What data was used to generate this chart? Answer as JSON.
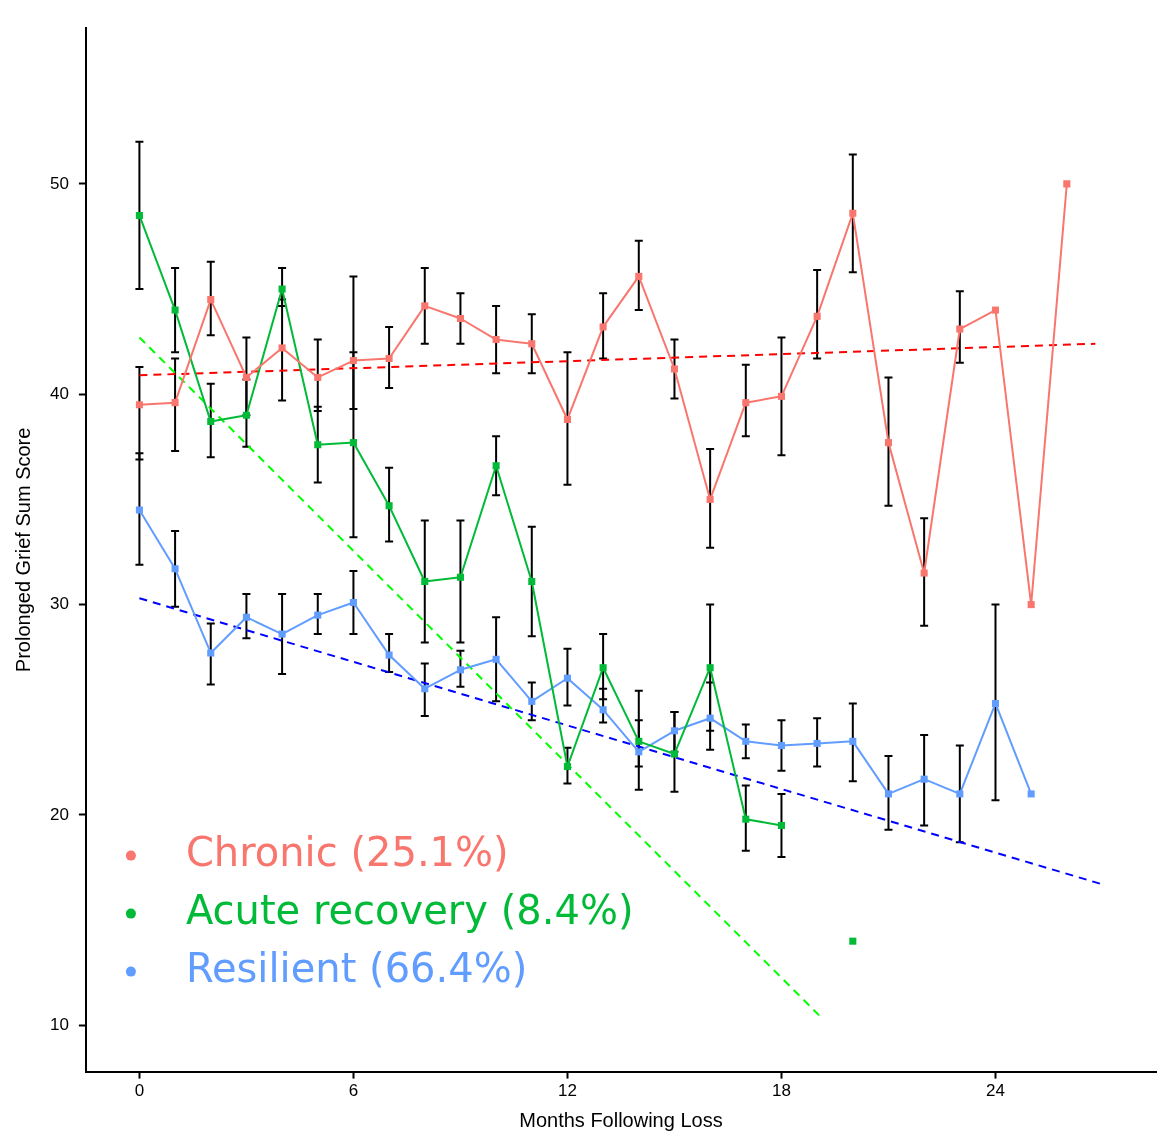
{
  "chart_data": {
    "type": "line",
    "xlabel": "Months Following Loss",
    "ylabel": "Prolonged Grief Sum Score",
    "x": [
      0,
      1,
      2,
      3,
      4,
      5,
      6,
      7,
      8,
      9,
      10,
      11,
      12,
      13,
      14,
      15,
      16,
      17,
      18,
      19,
      20,
      21,
      22,
      23,
      24,
      25,
      26
    ],
    "xlim": [
      -1.5,
      28.5
    ],
    "xticks": [
      0,
      6,
      12,
      18,
      24
    ],
    "ylim": [
      7.8,
      57.4
    ],
    "yticks": [
      10,
      20,
      30,
      40,
      50
    ],
    "grid": false,
    "legend": "bottom left",
    "marker": "square",
    "line_style": "solid",
    "series": [
      {
        "name": "Chronic (25.1%)",
        "color": "#f8766d",
        "values": [
          39.5,
          39.6,
          44.5,
          40.8,
          42.2,
          40.8,
          41.6,
          41.7,
          44.2,
          43.6,
          42.6,
          42.4,
          38.8,
          43.2,
          45.6,
          41.2,
          35.0,
          39.6,
          39.9,
          43.7,
          48.6,
          37.7,
          31.5,
          43.1,
          44.0,
          30.0,
          50.0
        ],
        "errors": [
          [
            36.9,
            41.3
          ],
          [
            37.3,
            41.7
          ],
          [
            42.8,
            46.3
          ],
          [
            39.0,
            42.7
          ],
          [
            39.7,
            44.5
          ],
          [
            39.2,
            42.6
          ],
          [
            39.3,
            45.6
          ],
          [
            40.3,
            43.2
          ],
          [
            42.4,
            46.0
          ],
          [
            42.4,
            44.8
          ],
          [
            41.0,
            44.2
          ],
          [
            41.0,
            43.8
          ],
          [
            35.7,
            42.0
          ],
          [
            41.7,
            44.8
          ],
          [
            44.0,
            47.3
          ],
          [
            39.8,
            42.6
          ],
          [
            32.7,
            37.4
          ],
          [
            38.0,
            41.4
          ],
          [
            37.1,
            42.7
          ],
          [
            41.7,
            45.9
          ],
          [
            45.8,
            51.4
          ],
          [
            34.7,
            40.8
          ],
          [
            29.0,
            34.1
          ],
          [
            41.5,
            44.9
          ],
          null,
          null,
          null
        ]
      },
      {
        "name": "Acute recovery (8.4%)",
        "color": "#00ba38",
        "values": [
          48.5,
          44.0,
          38.7,
          39.0,
          45.0,
          37.6,
          37.7,
          34.7,
          31.1,
          31.3,
          36.6,
          31.1,
          22.3,
          27.0,
          23.5,
          22.9,
          27.0,
          19.8,
          19.5,
          null,
          14.0,
          null,
          null,
          null,
          null,
          null,
          null
        ],
        "errors": [
          [
            45.0,
            52.0
          ],
          [
            42.0,
            46.0
          ],
          [
            37.0,
            40.5
          ],
          [
            37.5,
            40.7
          ],
          [
            44.2,
            46.0
          ],
          [
            35.8,
            39.4
          ],
          [
            33.2,
            42.0
          ],
          [
            33.0,
            36.5
          ],
          [
            28.2,
            34.0
          ],
          [
            28.2,
            34.0
          ],
          [
            35.2,
            38.0
          ],
          [
            28.5,
            33.7
          ],
          [
            21.5,
            23.2
          ],
          [
            25.5,
            28.6
          ],
          [
            21.2,
            25.9
          ],
          [
            21.1,
            24.9
          ],
          [
            24.0,
            30.0
          ],
          [
            18.3,
            21.4
          ],
          [
            18.0,
            21.0
          ],
          null,
          null,
          null,
          null,
          null,
          null,
          null,
          null
        ]
      },
      {
        "name": "Resilient (66.4%)",
        "color": "#619cff",
        "values": [
          34.5,
          31.7,
          27.7,
          29.4,
          28.6,
          29.5,
          30.1,
          27.6,
          26.0,
          26.9,
          27.4,
          25.4,
          26.5,
          25.0,
          23.0,
          24.0,
          24.6,
          23.5,
          23.3,
          23.4,
          23.5,
          21.0,
          21.7,
          21.0,
          25.3,
          21.0,
          null
        ],
        "errors": [
          [
            31.9,
            37.2
          ],
          [
            29.9,
            33.5
          ],
          [
            26.2,
            29.1
          ],
          [
            28.4,
            30.5
          ],
          [
            26.7,
            30.5
          ],
          [
            28.6,
            30.5
          ],
          [
            28.6,
            31.6
          ],
          [
            26.8,
            28.6
          ],
          [
            24.7,
            27.2
          ],
          [
            26.1,
            27.8
          ],
          [
            25.4,
            29.4
          ],
          [
            24.5,
            26.3
          ],
          [
            25.2,
            27.9
          ],
          [
            24.4,
            26.0
          ],
          [
            22.3,
            24.5
          ],
          [
            23.0,
            24.9
          ],
          [
            23.1,
            26.3
          ],
          [
            22.7,
            24.3
          ],
          [
            22.1,
            24.5
          ],
          [
            22.3,
            24.6
          ],
          [
            21.6,
            25.3
          ],
          [
            19.3,
            22.8
          ],
          [
            19.5,
            23.8
          ],
          [
            18.7,
            23.3
          ],
          [
            20.7,
            30.0
          ],
          null,
          null
        ]
      },
      {
        "type": "line",
        "color": "#ff0000",
        "x": [
          0,
          26.8
        ],
        "values": [
          40.9,
          42.4
        ],
        "line_style": "dashed",
        "marker": "none"
      },
      {
        "type": "line",
        "color": "#00ff00",
        "x": [
          0,
          19.1
        ],
        "values": [
          42.7,
          10.4
        ],
        "line_style": "dashed",
        "marker": "none"
      },
      {
        "type": "line",
        "color": "#0000ff",
        "x": [
          0,
          27.0
        ],
        "values": [
          30.3,
          16.7
        ],
        "line_style": "dashed",
        "marker": "none"
      }
    ]
  }
}
